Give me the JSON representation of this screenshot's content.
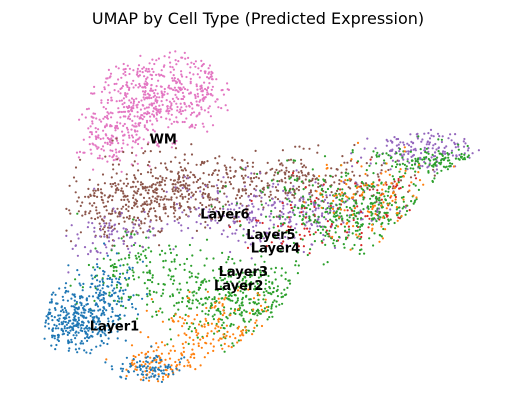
{
  "chart_data": {
    "type": "scatter",
    "title": "UMAP by Cell Type (Predicted Expression)",
    "xlabel": "",
    "ylabel": "",
    "axes_visible": false,
    "grid": false,
    "legend": "none (cluster labels drawn on data)",
    "xlim": [
      0,
      100
    ],
    "ylim": [
      0,
      100
    ],
    "series": [
      {
        "name": "WM",
        "color": "#e377c2",
        "label_pos": [
          26,
          71
        ]
      },
      {
        "name": "Layer6",
        "color": "#8c564b",
        "label_pos": [
          37,
          49
        ]
      },
      {
        "name": "Layer5",
        "color": "#9467bd",
        "label_pos": [
          47,
          43
        ]
      },
      {
        "name": "Layer4",
        "color": "#d62728",
        "label_pos": [
          48,
          39
        ]
      },
      {
        "name": "Layer3",
        "color": "#2ca02c",
        "label_pos": [
          41,
          32
        ]
      },
      {
        "name": "Layer2",
        "color": "#ff7f0e",
        "label_pos": [
          40,
          28
        ]
      },
      {
        "name": "Layer1",
        "color": "#1f77b4",
        "label_pos": [
          13,
          16
        ]
      }
    ]
  }
}
